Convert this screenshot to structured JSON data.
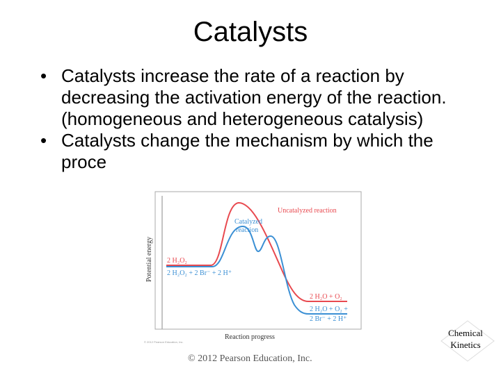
{
  "slide": {
    "title": "Catalysts",
    "bullets": [
      "Catalysts increase the rate of a reaction by decreasing the activation energy of the reaction.(homogeneous and heterogeneous catalysis)",
      "Catalysts change the mechanism by which the proce"
    ],
    "bullet_symbol": "•",
    "copyright": "© 2012 Pearson Education, Inc.",
    "corner_badge": {
      "line1": "Chemical",
      "line2": "Kinetics"
    }
  },
  "figure": {
    "ylabel": "Potential energy",
    "xlabel": "Reaction progress",
    "uncatalyzed_label": "Uncatalyzed reaction",
    "catalyzed_label_line1": "Catalyzed",
    "catalyzed_label_line2": "reaction",
    "reactants_uncatalyzed": "2 H₂O₂",
    "reactants_catalyzed": "2 H₂O₂ + 2 Br⁻ + 2 H⁺",
    "products_uncatalyzed": "2 H₂O + O₂",
    "products_catalyzed_line1": "2 H₂O + O₂ +",
    "products_catalyzed_line2": "2 Br⁻ + 2 H⁺",
    "credit": "© 2012 Pearson Education, Inc.",
    "colors": {
      "uncatalyzed": "#e8494f",
      "catalyzed": "#3a8fd4",
      "axis": "#888888",
      "text": "#333333"
    }
  }
}
